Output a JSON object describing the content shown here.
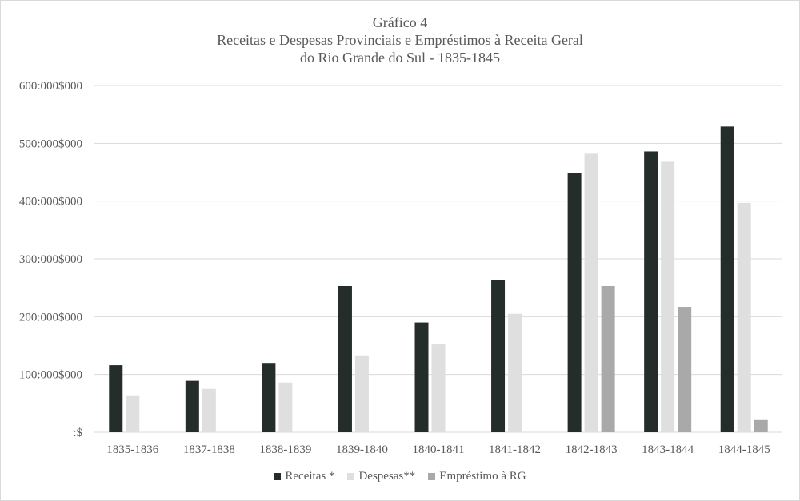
{
  "chart_data": {
    "type": "bar",
    "title_lines": [
      "Gráfico 4",
      "Receitas e Despesas Provinciais  e Empréstimos à Receita Geral",
      "do Rio Grande do Sul - 1835-1845"
    ],
    "categories": [
      "1835-1836",
      "1837-1838",
      "1838-1839",
      "1839-1840",
      "1840-1841",
      "1841-1842",
      "1842-1843",
      "1843-1844",
      "1844-1845"
    ],
    "series": [
      {
        "name": "Receitas *",
        "color": "#252d2b",
        "values": [
          116000,
          89000,
          120000,
          253000,
          190000,
          264000,
          448000,
          486000,
          529000
        ]
      },
      {
        "name": "Despesas**",
        "color": "#e0dfe0",
        "values": [
          64000,
          75000,
          86000,
          133000,
          152000,
          205000,
          482000,
          468000,
          397000
        ]
      },
      {
        "name": "Empréstimo à RG",
        "color": "#a9a9a9",
        "values": [
          0,
          0,
          0,
          0,
          0,
          0,
          253000,
          217000,
          21000
        ]
      }
    ],
    "yticks": [
      ":$",
      "100:000$000",
      "200:000$000",
      "300:000$000",
      "400:000$000",
      "500:000$000",
      "600:000$000"
    ],
    "ytick_values": [
      0,
      100000,
      200000,
      300000,
      400000,
      500000,
      600000
    ],
    "ylim": [
      0,
      600000
    ],
    "grid": true,
    "legend_position": "bottom"
  }
}
